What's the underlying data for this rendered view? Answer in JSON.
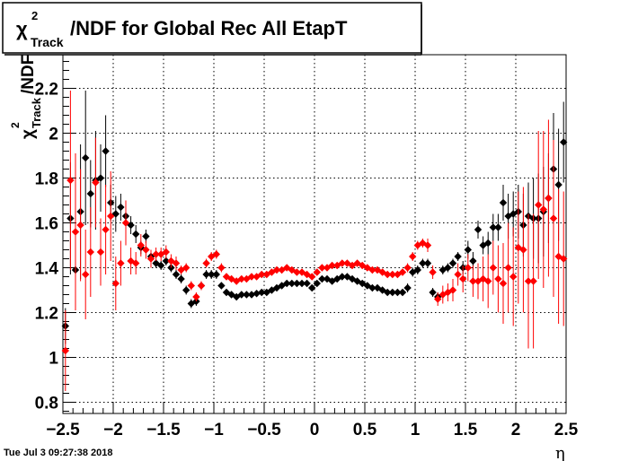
{
  "chart_data": {
    "type": "scatter",
    "title": "/NDF for Global Rec All EtapT",
    "title_symbol": "χ",
    "title_sup": "2",
    "title_sub": "Track",
    "ylabel_symbol": "χ",
    "ylabel_sup": "2",
    "ylabel_sub": "Track",
    "ylabel_rest": "/NDF",
    "xlabel": "η",
    "xlim": [
      -2.5,
      2.5
    ],
    "ylim": [
      0.75,
      2.35
    ],
    "x_ticks": [
      -2.5,
      -2,
      -1.5,
      -1,
      -0.5,
      0,
      0.5,
      1,
      1.5,
      2,
      2.5
    ],
    "x_tick_labels": [
      "−2.5",
      "−2",
      "−1.5",
      "−1",
      "−0.5",
      "0",
      "0.5",
      "1",
      "1.5",
      "2",
      "2.5"
    ],
    "y_ticks": [
      0.8,
      1,
      1.2,
      1.4,
      1.6,
      1.8,
      2,
      2.2
    ],
    "y_tick_labels": [
      "0.8",
      "1",
      "1.2",
      "1.4",
      "1.6",
      "1.8",
      "2",
      "2.2"
    ],
    "grid": true,
    "timestamp": "Tue Jul  3 09:27:38 2018",
    "colors": {
      "series_black": "#000000",
      "series_red": "#ff0000",
      "grid": "#000000"
    },
    "series": [
      {
        "color": "#000000",
        "x": [
          -2.475,
          -2.425,
          -2.375,
          -2.325,
          -2.275,
          -2.225,
          -2.175,
          -2.125,
          -2.075,
          -2.025,
          -1.975,
          -1.925,
          -1.875,
          -1.825,
          -1.775,
          -1.725,
          -1.675,
          -1.625,
          -1.575,
          -1.525,
          -1.475,
          -1.425,
          -1.375,
          -1.325,
          -1.275,
          -1.225,
          -1.175,
          -1.125,
          -1.075,
          -1.025,
          -0.975,
          -0.925,
          -0.875,
          -0.825,
          -0.775,
          -0.725,
          -0.675,
          -0.625,
          -0.575,
          -0.525,
          -0.475,
          -0.425,
          -0.375,
          -0.325,
          -0.275,
          -0.225,
          -0.175,
          -0.125,
          -0.075,
          -0.025,
          0.025,
          0.075,
          0.125,
          0.175,
          0.225,
          0.275,
          0.325,
          0.375,
          0.425,
          0.475,
          0.525,
          0.575,
          0.625,
          0.675,
          0.725,
          0.775,
          0.825,
          0.875,
          0.925,
          0.975,
          1.025,
          1.075,
          1.125,
          1.175,
          1.225,
          1.275,
          1.325,
          1.375,
          1.425,
          1.475,
          1.525,
          1.575,
          1.625,
          1.675,
          1.725,
          1.775,
          1.825,
          1.875,
          1.925,
          1.975,
          2.025,
          2.075,
          2.125,
          2.175,
          2.225,
          2.275,
          2.325,
          2.375,
          2.425,
          2.475
        ],
        "y": [
          1.14,
          1.62,
          1.39,
          1.65,
          1.89,
          1.73,
          1.79,
          1.8,
          1.92,
          1.69,
          1.64,
          1.67,
          1.63,
          1.59,
          1.55,
          1.49,
          1.54,
          1.45,
          1.42,
          1.41,
          1.43,
          1.4,
          1.37,
          1.35,
          1.3,
          1.24,
          1.25,
          1.32,
          1.37,
          1.37,
          1.37,
          1.32,
          1.29,
          1.28,
          1.27,
          1.28,
          1.28,
          1.28,
          1.285,
          1.29,
          1.29,
          1.3,
          1.31,
          1.32,
          1.33,
          1.33,
          1.33,
          1.33,
          1.33,
          1.31,
          1.33,
          1.35,
          1.35,
          1.34,
          1.35,
          1.36,
          1.36,
          1.35,
          1.34,
          1.33,
          1.32,
          1.31,
          1.31,
          1.3,
          1.29,
          1.29,
          1.29,
          1.29,
          1.31,
          1.38,
          1.39,
          1.42,
          1.42,
          1.29,
          1.27,
          1.39,
          1.4,
          1.42,
          1.45,
          1.4,
          1.48,
          1.43,
          1.57,
          1.5,
          1.51,
          1.58,
          1.58,
          1.69,
          1.63,
          1.64,
          1.65,
          1.59,
          1.63,
          1.62,
          1.62,
          1.65,
          1.71,
          1.84,
          1.77,
          1.96
        ],
        "err": [
          0.08,
          0.25,
          0.18,
          0.3,
          0.3,
          0.15,
          0.22,
          0.15,
          0.16,
          0.08,
          0.08,
          0.06,
          0.05,
          0.04,
          0.04,
          0.03,
          0.03,
          0.03,
          0.02,
          0.02,
          0.02,
          0.02,
          0.02,
          0.02,
          0.02,
          0.02,
          0.02,
          0.02,
          0.02,
          0.02,
          0.02,
          0.015,
          0.015,
          0.015,
          0.015,
          0.015,
          0.01,
          0.01,
          0.01,
          0.01,
          0.01,
          0.01,
          0.01,
          0.01,
          0.01,
          0.01,
          0.01,
          0.01,
          0.01,
          0.01,
          0.01,
          0.01,
          0.01,
          0.01,
          0.01,
          0.01,
          0.01,
          0.01,
          0.01,
          0.01,
          0.01,
          0.01,
          0.01,
          0.01,
          0.01,
          0.01,
          0.01,
          0.015,
          0.02,
          0.02,
          0.02,
          0.02,
          0.02,
          0.02,
          0.02,
          0.02,
          0.02,
          0.02,
          0.02,
          0.03,
          0.04,
          0.04,
          0.04,
          0.04,
          0.05,
          0.06,
          0.06,
          0.08,
          0.1,
          0.1,
          0.12,
          0.14,
          0.15,
          0.18,
          0.2,
          0.2,
          0.2,
          0.25,
          0.25,
          0.18
        ]
      },
      {
        "color": "#ff0000",
        "x": [
          -2.475,
          -2.425,
          -2.375,
          -2.325,
          -2.275,
          -2.225,
          -2.175,
          -2.125,
          -2.075,
          -2.025,
          -1.975,
          -1.925,
          -1.875,
          -1.825,
          -1.775,
          -1.725,
          -1.675,
          -1.625,
          -1.575,
          -1.525,
          -1.475,
          -1.425,
          -1.375,
          -1.325,
          -1.275,
          -1.225,
          -1.175,
          -1.125,
          -1.075,
          -1.025,
          -0.975,
          -0.925,
          -0.875,
          -0.825,
          -0.775,
          -0.725,
          -0.675,
          -0.625,
          -0.575,
          -0.525,
          -0.475,
          -0.425,
          -0.375,
          -0.325,
          -0.275,
          -0.225,
          -0.175,
          -0.125,
          -0.075,
          -0.025,
          0.025,
          0.075,
          0.125,
          0.175,
          0.225,
          0.275,
          0.325,
          0.375,
          0.425,
          0.475,
          0.525,
          0.575,
          0.625,
          0.675,
          0.725,
          0.775,
          0.825,
          0.875,
          0.925,
          0.975,
          1.025,
          1.075,
          1.125,
          1.175,
          1.225,
          1.275,
          1.325,
          1.375,
          1.425,
          1.475,
          1.525,
          1.575,
          1.625,
          1.675,
          1.725,
          1.775,
          1.825,
          1.875,
          1.925,
          1.975,
          2.025,
          2.075,
          2.125,
          2.175,
          2.225,
          2.275,
          2.325,
          2.375,
          2.425,
          2.475
        ],
        "y": [
          1.03,
          1.79,
          1.56,
          1.59,
          1.37,
          1.47,
          1.78,
          1.47,
          1.57,
          1.63,
          1.33,
          1.42,
          1.6,
          1.43,
          1.42,
          1.5,
          1.48,
          1.44,
          1.46,
          1.46,
          1.47,
          1.43,
          1.42,
          1.39,
          1.4,
          1.32,
          1.27,
          1.32,
          1.42,
          1.45,
          1.46,
          1.4,
          1.36,
          1.35,
          1.34,
          1.35,
          1.35,
          1.36,
          1.36,
          1.37,
          1.37,
          1.38,
          1.39,
          1.39,
          1.4,
          1.39,
          1.38,
          1.38,
          1.37,
          1.36,
          1.38,
          1.4,
          1.4,
          1.41,
          1.41,
          1.42,
          1.42,
          1.41,
          1.42,
          1.41,
          1.4,
          1.39,
          1.39,
          1.38,
          1.37,
          1.37,
          1.37,
          1.38,
          1.4,
          1.45,
          1.5,
          1.51,
          1.5,
          1.38,
          1.26,
          1.28,
          1.29,
          1.3,
          1.37,
          1.35,
          1.4,
          1.34,
          1.34,
          1.35,
          1.34,
          1.4,
          1.35,
          1.33,
          1.4,
          1.36,
          1.49,
          1.48,
          1.34,
          1.34,
          1.68,
          1.66,
          1.71,
          1.62,
          1.45,
          1.44
        ],
        "err": [
          0.18,
          0.4,
          0.35,
          0.25,
          0.2,
          0.2,
          0.2,
          0.15,
          0.2,
          0.2,
          0.12,
          0.1,
          0.1,
          0.06,
          0.05,
          0.05,
          0.04,
          0.04,
          0.03,
          0.03,
          0.03,
          0.03,
          0.03,
          0.02,
          0.02,
          0.02,
          0.02,
          0.02,
          0.02,
          0.02,
          0.02,
          0.02,
          0.015,
          0.015,
          0.015,
          0.01,
          0.01,
          0.01,
          0.01,
          0.01,
          0.01,
          0.01,
          0.01,
          0.01,
          0.01,
          0.01,
          0.01,
          0.01,
          0.01,
          0.01,
          0.01,
          0.01,
          0.01,
          0.01,
          0.01,
          0.01,
          0.01,
          0.01,
          0.01,
          0.01,
          0.01,
          0.01,
          0.01,
          0.01,
          0.01,
          0.01,
          0.01,
          0.015,
          0.02,
          0.02,
          0.02,
          0.02,
          0.03,
          0.03,
          0.03,
          0.04,
          0.04,
          0.05,
          0.05,
          0.06,
          0.06,
          0.07,
          0.08,
          0.1,
          0.12,
          0.12,
          0.15,
          0.18,
          0.2,
          0.22,
          0.25,
          0.28,
          0.3,
          0.3,
          0.33,
          0.35,
          0.35,
          0.35,
          0.3,
          0.3
        ]
      }
    ]
  }
}
